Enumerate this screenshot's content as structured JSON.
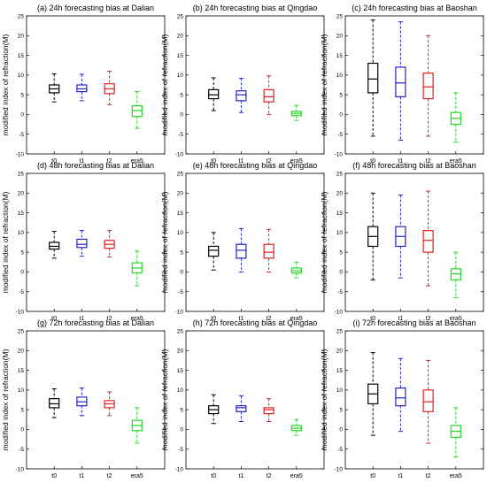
{
  "ylabel": "modified index of refraction(M)",
  "colors": {
    "t0": "#000000",
    "t1": "#2323c8",
    "t2": "#e02020",
    "era5": "#22d822"
  },
  "chart_data": [
    {
      "type": "box",
      "title": "(a) 24h forecasting bias at Dalian",
      "ylim": [
        -10,
        25
      ],
      "yticks": [
        -10,
        -5,
        0,
        5,
        10,
        15,
        20,
        25
      ],
      "categories": [
        "t0",
        "t1",
        "t2",
        "era5"
      ],
      "boxes": [
        {
          "min": 3.2,
          "q1": 5.5,
          "median": 6.5,
          "q3": 7.5,
          "max": 10.3
        },
        {
          "min": 3.5,
          "q1": 5.8,
          "median": 6.5,
          "q3": 7.5,
          "max": 10.2
        },
        {
          "min": 2.5,
          "q1": 5.3,
          "median": 6.5,
          "q3": 7.8,
          "max": 11.0
        },
        {
          "min": -3.5,
          "q1": -0.5,
          "median": 1.0,
          "q3": 2.2,
          "max": 5.8
        }
      ]
    },
    {
      "type": "box",
      "title": "(b) 24h forecasting bias at Qingdao",
      "ylim": [
        -10,
        25
      ],
      "yticks": [
        -10,
        -5,
        0,
        5,
        10,
        15,
        20,
        25
      ],
      "categories": [
        "t0",
        "t1",
        "t2",
        "era5"
      ],
      "boxes": [
        {
          "min": 1.0,
          "q1": 4.0,
          "median": 5.0,
          "q3": 6.3,
          "max": 9.3
        },
        {
          "min": 0.5,
          "q1": 3.5,
          "median": 5.0,
          "q3": 6.0,
          "max": 9.2
        },
        {
          "min": 0.0,
          "q1": 3.2,
          "median": 4.5,
          "q3": 6.3,
          "max": 9.8
        },
        {
          "min": -1.5,
          "q1": -0.3,
          "median": 0.3,
          "q3": 0.8,
          "max": 2.3
        }
      ]
    },
    {
      "type": "box",
      "title": "(c) 24h forecasting bias at Baoshan",
      "ylim": [
        -10,
        25
      ],
      "yticks": [
        -10,
        -5,
        0,
        5,
        10,
        15,
        20,
        25
      ],
      "categories": [
        "t0",
        "t1",
        "t2",
        "era5"
      ],
      "boxes": [
        {
          "min": -5.5,
          "q1": 5.5,
          "median": 9.0,
          "q3": 13.0,
          "max": 24.0
        },
        {
          "min": -6.5,
          "q1": 4.5,
          "median": 8.0,
          "q3": 12.0,
          "max": 23.5
        },
        {
          "min": -5.5,
          "q1": 4.0,
          "median": 7.0,
          "q3": 10.5,
          "max": 20.0
        },
        {
          "min": -7.0,
          "q1": -2.5,
          "median": -1.0,
          "q3": 0.5,
          "max": 5.5
        }
      ]
    },
    {
      "type": "box",
      "title": "(d) 48h forecasting bias at Dalian",
      "ylim": [
        -10,
        25
      ],
      "yticks": [
        -10,
        -5,
        0,
        5,
        10,
        15,
        20,
        25
      ],
      "categories": [
        "t0",
        "t1",
        "t2",
        "era5"
      ],
      "boxes": [
        {
          "min": 3.5,
          "q1": 5.8,
          "median": 6.5,
          "q3": 7.5,
          "max": 10.3
        },
        {
          "min": 4.0,
          "q1": 6.2,
          "median": 7.0,
          "q3": 8.3,
          "max": 10.5
        },
        {
          "min": 3.8,
          "q1": 6.0,
          "median": 7.0,
          "q3": 8.0,
          "max": 10.5
        },
        {
          "min": -3.5,
          "q1": -0.2,
          "median": 1.0,
          "q3": 2.3,
          "max": 5.3
        }
      ]
    },
    {
      "type": "box",
      "title": "(e) 48h forecasting bias at Qingdao",
      "ylim": [
        -10,
        25
      ],
      "yticks": [
        -10,
        -5,
        0,
        5,
        10,
        15,
        20,
        25
      ],
      "categories": [
        "t0",
        "t1",
        "t2",
        "era5"
      ],
      "boxes": [
        {
          "min": 0.5,
          "q1": 4.0,
          "median": 5.5,
          "q3": 6.5,
          "max": 10.0
        },
        {
          "min": 0.0,
          "q1": 3.5,
          "median": 5.5,
          "q3": 7.0,
          "max": 11.0
        },
        {
          "min": 0.0,
          "q1": 3.5,
          "median": 5.0,
          "q3": 7.0,
          "max": 10.8
        },
        {
          "min": -1.5,
          "q1": -0.3,
          "median": 0.3,
          "q3": 1.0,
          "max": 2.5
        }
      ]
    },
    {
      "type": "box",
      "title": "(f) 48h forecasting bias at Baoshan",
      "ylim": [
        -10,
        25
      ],
      "yticks": [
        -10,
        -5,
        0,
        5,
        10,
        15,
        20,
        25
      ],
      "categories": [
        "t0",
        "t1",
        "t2",
        "era5"
      ],
      "boxes": [
        {
          "min": -2.0,
          "q1": 6.5,
          "median": 9.0,
          "q3": 11.5,
          "max": 20.0
        },
        {
          "min": -1.5,
          "q1": 6.5,
          "median": 9.0,
          "q3": 11.5,
          "max": 19.5
        },
        {
          "min": -3.5,
          "q1": 5.0,
          "median": 8.0,
          "q3": 10.5,
          "max": 20.5
        },
        {
          "min": -6.5,
          "q1": -2.0,
          "median": -0.5,
          "q3": 0.8,
          "max": 5.0
        }
      ]
    },
    {
      "type": "box",
      "title": "(g) 72h forecasting bias at Dalian",
      "ylim": [
        -10,
        25
      ],
      "yticks": [
        -10,
        -5,
        0,
        5,
        10,
        15,
        20,
        25
      ],
      "categories": [
        "t0",
        "t1",
        "t2",
        "era5"
      ],
      "boxes": [
        {
          "min": 3.0,
          "q1": 5.5,
          "median": 6.5,
          "q3": 7.8,
          "max": 10.3
        },
        {
          "min": 3.5,
          "q1": 6.0,
          "median": 7.0,
          "q3": 8.2,
          "max": 10.5
        },
        {
          "min": 3.5,
          "q1": 5.5,
          "median": 6.5,
          "q3": 7.3,
          "max": 9.5
        },
        {
          "min": -3.5,
          "q1": -0.3,
          "median": 1.0,
          "q3": 2.3,
          "max": 5.5
        }
      ]
    },
    {
      "type": "box",
      "title": "(h) 72h forecasting bias at Qingdao",
      "ylim": [
        -10,
        25
      ],
      "yticks": [
        -10,
        -5,
        0,
        5,
        10,
        15,
        20,
        25
      ],
      "categories": [
        "t0",
        "t1",
        "t2",
        "era5"
      ],
      "boxes": [
        {
          "min": 1.5,
          "q1": 4.0,
          "median": 5.0,
          "q3": 6.0,
          "max": 8.8
        },
        {
          "min": 2.0,
          "q1": 4.5,
          "median": 5.5,
          "q3": 6.0,
          "max": 8.5
        },
        {
          "min": 2.0,
          "q1": 4.0,
          "median": 5.0,
          "q3": 5.5,
          "max": 7.8
        },
        {
          "min": -1.5,
          "q1": -0.3,
          "median": 0.3,
          "q3": 1.0,
          "max": 2.5
        }
      ]
    },
    {
      "type": "box",
      "title": "(i) 72h forecasting bias at Baoshan",
      "ylim": [
        -10,
        25
      ],
      "yticks": [
        -10,
        -5,
        0,
        5,
        10,
        15,
        20,
        25
      ],
      "categories": [
        "t0",
        "t1",
        "t2",
        "era5"
      ],
      "boxes": [
        {
          "min": -1.5,
          "q1": 6.5,
          "median": 9.0,
          "q3": 11.5,
          "max": 19.5
        },
        {
          "min": -0.5,
          "q1": 6.0,
          "median": 8.0,
          "q3": 10.5,
          "max": 18.0
        },
        {
          "min": -3.5,
          "q1": 4.5,
          "median": 7.0,
          "q3": 10.0,
          "max": 17.5
        },
        {
          "min": -7.0,
          "q1": -2.0,
          "median": -0.5,
          "q3": 1.0,
          "max": 5.5
        }
      ]
    }
  ]
}
